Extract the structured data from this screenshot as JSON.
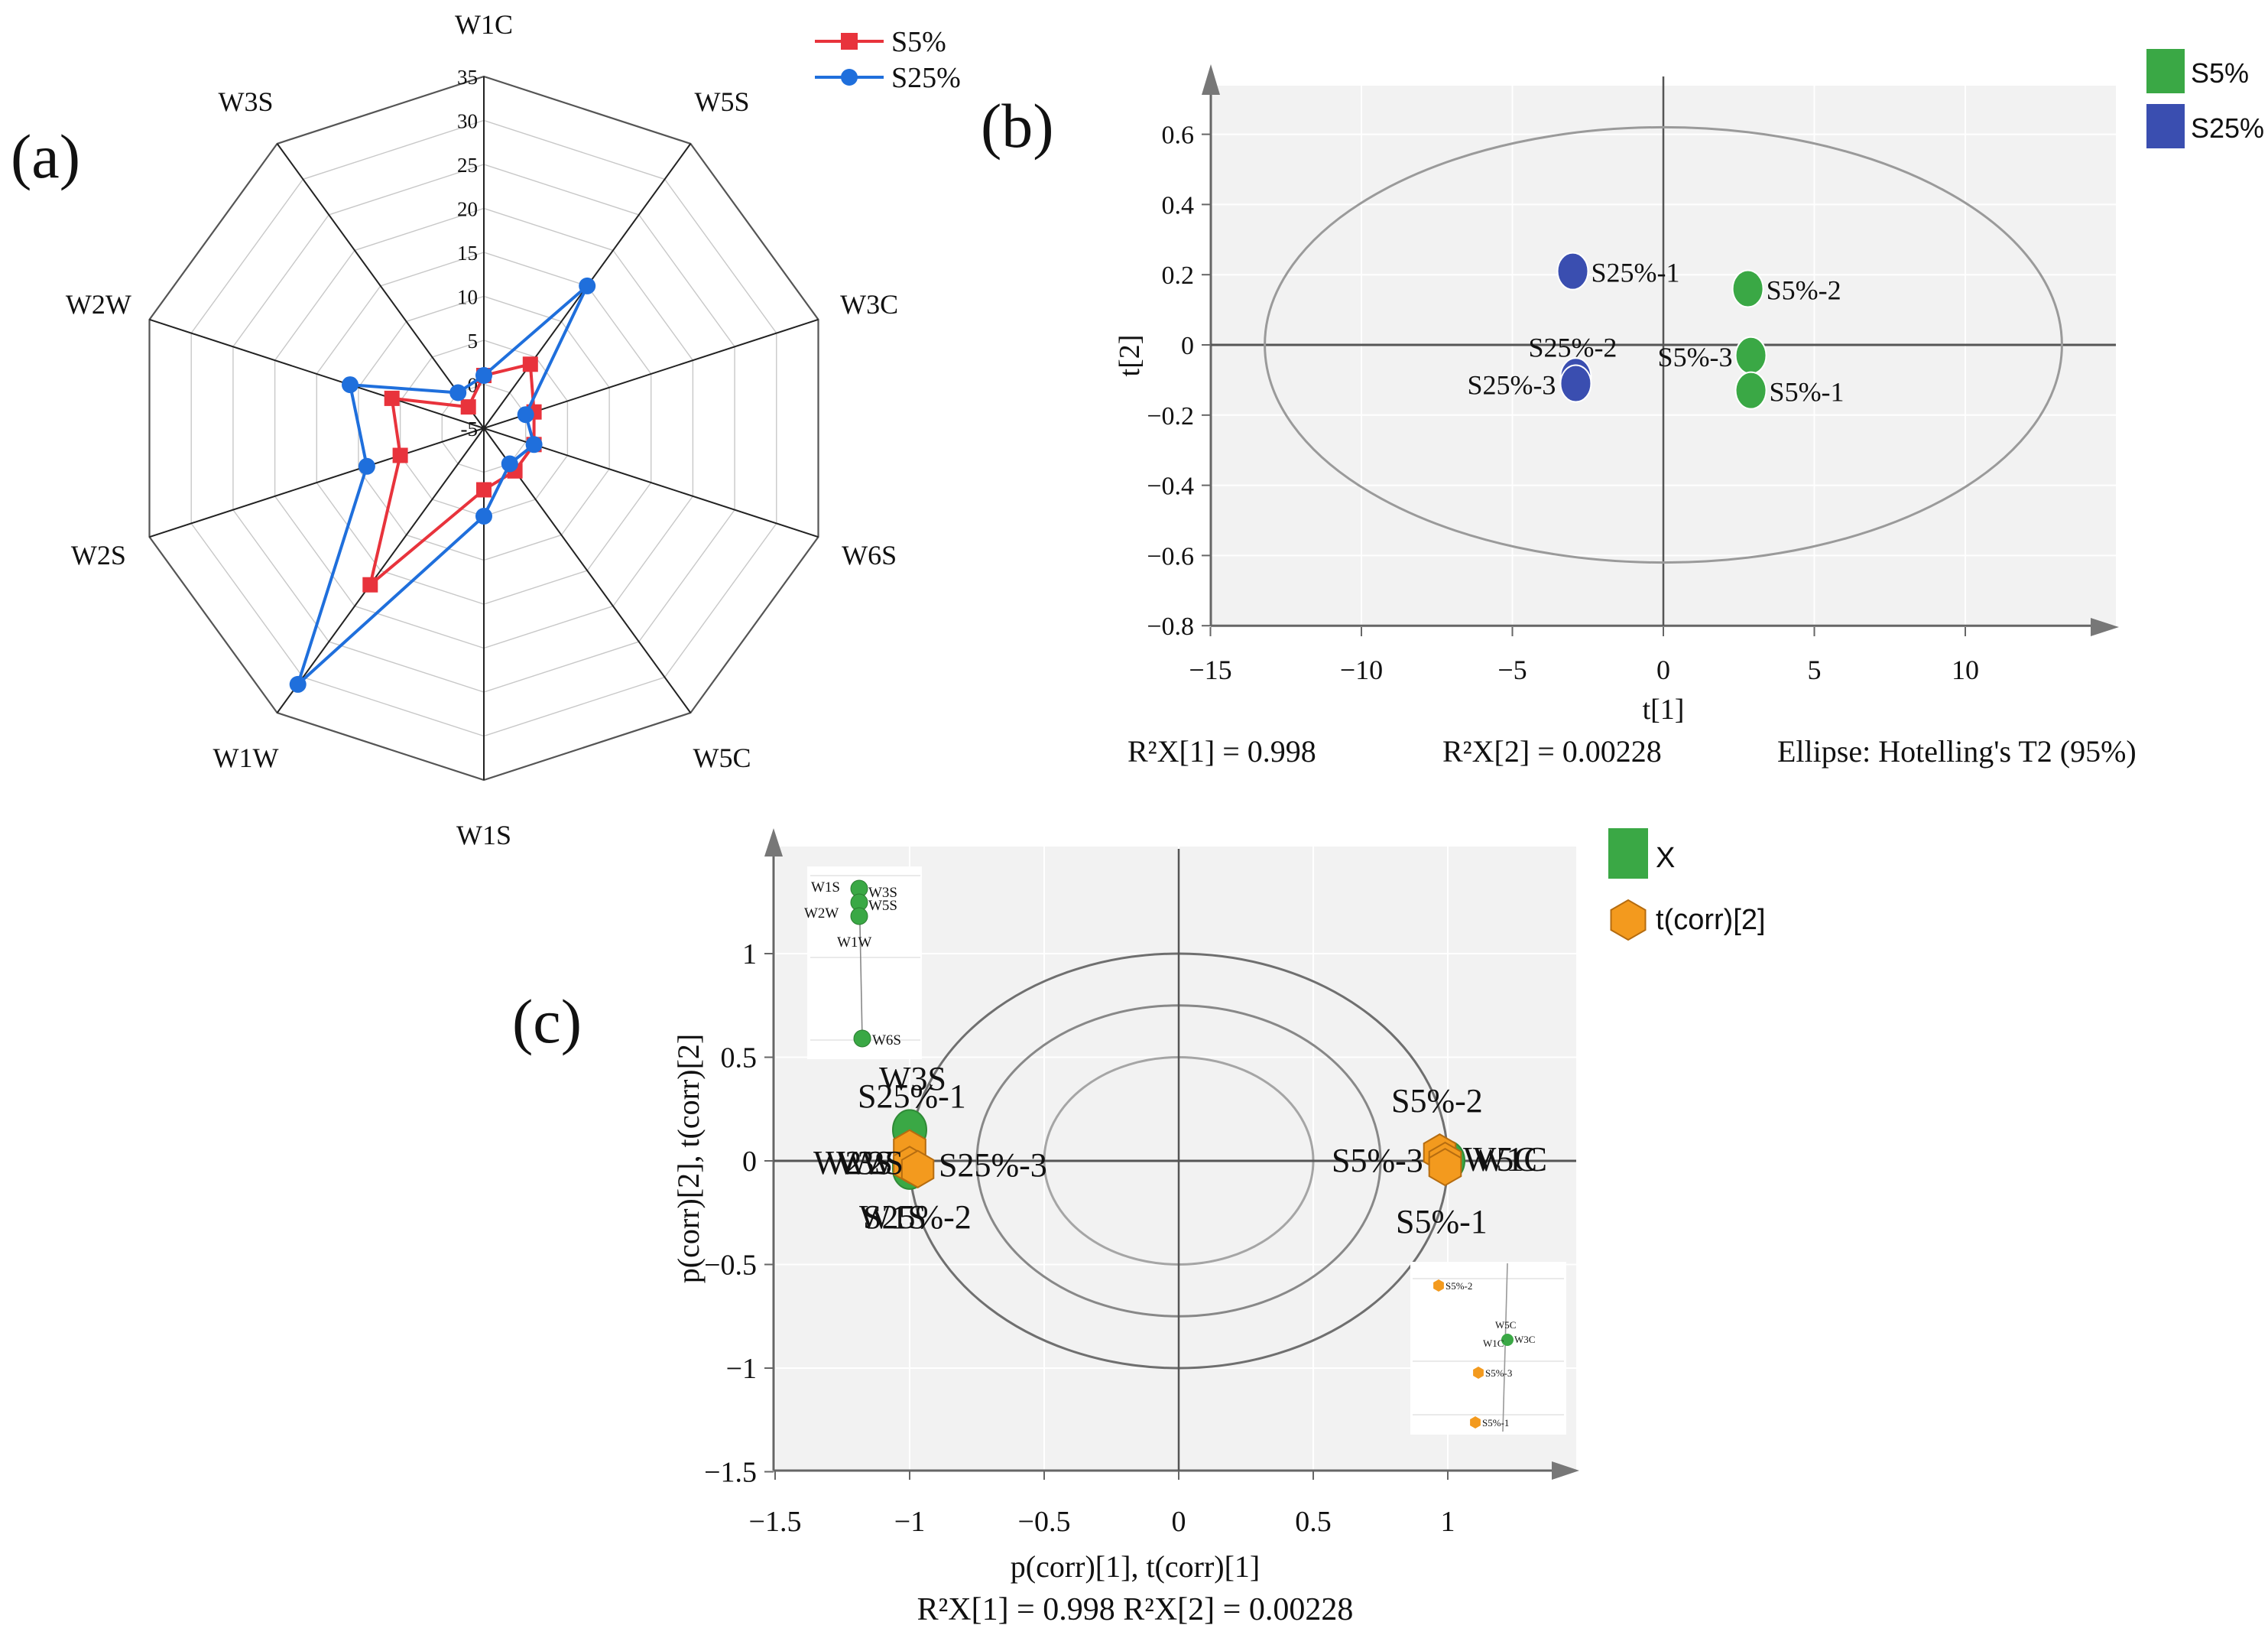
{
  "figure": {
    "panel_a_label": "(a)",
    "panel_b_label": "(b)",
    "panel_c_label": "(c)"
  },
  "colors": {
    "s5": "#e8333c",
    "s25": "#1f6fdc",
    "green": "#3aa845",
    "blue": "#3a4eb0",
    "orange": "#f39a1e",
    "orange_text": "#c97914",
    "green_text": "#2f7d33",
    "blue_text": "#2b3b90"
  },
  "panel_a": {
    "legend": [
      {
        "label": "S5%",
        "color": "#e8333c",
        "marker": "square"
      },
      {
        "label": "S25%",
        "color": "#1f6fdc",
        "marker": "circle"
      }
    ]
  },
  "panel_b": {
    "legend": [
      {
        "label": "S5%",
        "color": "#3aa845"
      },
      {
        "label": "S25%",
        "color": "#3a4eb0"
      }
    ],
    "stats": {
      "r2x1": "R²X[1] = 0.998",
      "r2x2": "R²X[2] = 0.00228",
      "ellipse": "Ellipse: Hotelling's T2 (95%)"
    }
  },
  "panel_c": {
    "legend": [
      {
        "label": "X",
        "color": "#3aa845",
        "marker": "square"
      },
      {
        "label": "t(corr)[2]",
        "color": "#f39a1e",
        "marker": "hexagon"
      }
    ],
    "stats": "R²X[1] = 0.998   R²X[2] = 0.00228",
    "inset_left_labels": [
      "W1S",
      "W3S",
      "W2W",
      "W5S",
      "W1W",
      "W6S"
    ],
    "inset_right_labels": [
      "S5%-2",
      "W5C",
      "W1C",
      "W3C",
      "S5%-3",
      "S5%-1"
    ]
  },
  "chart_data": [
    {
      "type": "radar",
      "panel": "(a)",
      "axes": [
        "W1C",
        "W5S",
        "W3C",
        "W6S",
        "W5C",
        "W1S",
        "W1W",
        "W2S",
        "W2W",
        "W3S"
      ],
      "rlim": [
        -5,
        35
      ],
      "ticks": [
        -5,
        0,
        5,
        10,
        15,
        20,
        25,
        30,
        35
      ],
      "series": [
        {
          "name": "S5%",
          "values": [
            1,
            4,
            1,
            1,
            1,
            2,
            17,
            5,
            6,
            -2
          ]
        },
        {
          "name": "S25%",
          "values": [
            1,
            15,
            0,
            1,
            0,
            5,
            31,
            9,
            11,
            0
          ]
        }
      ]
    },
    {
      "type": "scatter",
      "panel": "(b)",
      "xlabel": "t[1]",
      "ylabel": "t[2]",
      "xlim": [
        -15,
        15
      ],
      "ylim": [
        -0.8,
        0.7
      ],
      "xticks": [
        -15,
        -10,
        -5,
        0,
        5,
        10
      ],
      "yticks": [
        -0.8,
        -0.6,
        -0.4,
        -0.2,
        0,
        0.2,
        0.4,
        0.6
      ],
      "ellipse": {
        "a": 13.2,
        "b": 0.62
      },
      "series": [
        {
          "name": "S5%",
          "points": [
            {
              "label": "S5%-2",
              "x": 2.8,
              "y": 0.16
            },
            {
              "label": "S5%-3",
              "x": 2.9,
              "y": -0.03
            },
            {
              "label": "S5%-1",
              "x": 2.9,
              "y": -0.13
            }
          ]
        },
        {
          "name": "S25%",
          "points": [
            {
              "label": "S25%-1",
              "x": -3.0,
              "y": 0.21
            },
            {
              "label": "S25%-2",
              "x": -2.9,
              "y": -0.09
            },
            {
              "label": "S25%-3",
              "x": -2.9,
              "y": -0.11
            }
          ]
        }
      ]
    },
    {
      "type": "scatter",
      "panel": "(c)",
      "xlabel": "p(corr)[1], t(corr)[1]",
      "ylabel": "p(corr)[2], t(corr)[2]",
      "xlim": [
        -1.5,
        1.5
      ],
      "ylim": [
        -1.5,
        1.5
      ],
      "xticks": [
        -1.5,
        -1,
        -0.5,
        0,
        0.5,
        1
      ],
      "yticks": [
        -1.5,
        -1,
        -0.5,
        0,
        0.5,
        1
      ],
      "circles": [
        1.0,
        0.75,
        0.5
      ],
      "series": [
        {
          "name": "X",
          "points": [
            {
              "label": "W3S",
              "x": -1.0,
              "y": 0.15
            },
            {
              "label": "W2S",
              "x": -1.0,
              "y": -0.02
            },
            {
              "label": "W1S",
              "x": -1.0,
              "y": -0.04
            },
            {
              "label": "W1C",
              "x": 1.0,
              "y": 0.0
            }
          ]
        },
        {
          "name": "t(corr)[2]",
          "points": [
            {
              "label": "S25%-1",
              "x": -1.0,
              "y": 0.06
            },
            {
              "label": "S25%-2",
              "x": -1.0,
              "y": -0.02
            },
            {
              "label": "S25%-3",
              "x": -0.97,
              "y": -0.04
            },
            {
              "label": "S5%-2",
              "x": 0.97,
              "y": 0.04
            },
            {
              "label": "S5%-3",
              "x": 0.99,
              "y": 0.0
            },
            {
              "label": "S5%-1",
              "x": 0.99,
              "y": -0.03
            }
          ]
        }
      ],
      "extra_labels": [
        "W2W",
        "W3S",
        "W2S",
        "S25%-2",
        "W5C",
        "W1C"
      ]
    }
  ]
}
